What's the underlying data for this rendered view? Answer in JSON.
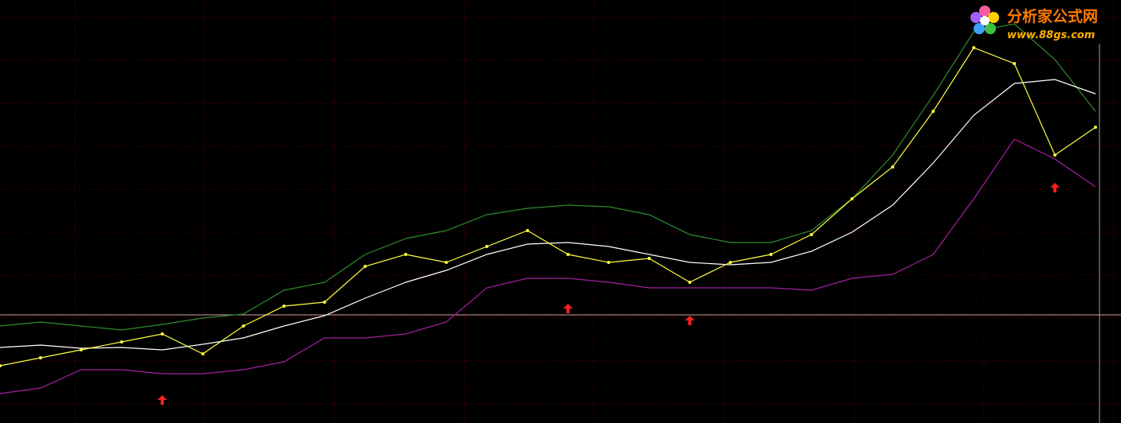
{
  "chart_data": {
    "type": "line",
    "categories": [
      null,
      null,
      null,
      null,
      null,
      null,
      null,
      null,
      null,
      null,
      null,
      null,
      null,
      null,
      null,
      null,
      null,
      null,
      null,
      null,
      null,
      null,
      null,
      null,
      null,
      null,
      null,
      null
    ],
    "ylim": [
      0,
      532
    ],
    "series": [
      {
        "color": "#2e8b2e",
        "values": [
          122,
          127,
          122,
          117,
          124,
          132,
          137,
          167,
          177,
          212,
          232,
          242,
          262,
          270,
          274,
          272,
          262,
          237,
          227,
          227,
          242,
          282,
          337,
          412,
          492,
          502,
          457,
          392
        ]
      },
      {
        "color": "#ffffff",
        "values": [
          95,
          98,
          94,
          95,
          92,
          99,
          107,
          122,
          135,
          157,
          177,
          192,
          212,
          225,
          227,
          222,
          212,
          202,
          199,
          202,
          216,
          240,
          274,
          327,
          387,
          427,
          432,
          414
        ]
      },
      {
        "color": "#a020a0",
        "values": [
          37,
          44,
          67,
          67,
          62,
          62,
          67,
          77,
          107,
          107,
          112,
          127,
          170,
          182,
          182,
          177,
          170,
          170,
          170,
          170,
          167,
          182,
          187,
          212,
          282,
          357,
          332,
          297
        ]
      },
      {
        "color": "#ffff40",
        "values": [
          72,
          82,
          92,
          102,
          112,
          87,
          122,
          147,
          152,
          197,
          212,
          202,
          222,
          242,
          212,
          202,
          207,
          177,
          202,
          212,
          237,
          282,
          322,
          392,
          472,
          452,
          337,
          372
        ]
      },
      {
        "color": "#ff2020",
        "mark": "arrow",
        "values": [
          null,
          null,
          null,
          null,
          35,
          null,
          null,
          null,
          null,
          null,
          null,
          null,
          null,
          null,
          150,
          null,
          null,
          135,
          null,
          null,
          null,
          null,
          null,
          null,
          null,
          null,
          302,
          null
        ]
      }
    ]
  },
  "logo": {
    "title": "分析家公式网",
    "url": "www.88gs.com"
  }
}
